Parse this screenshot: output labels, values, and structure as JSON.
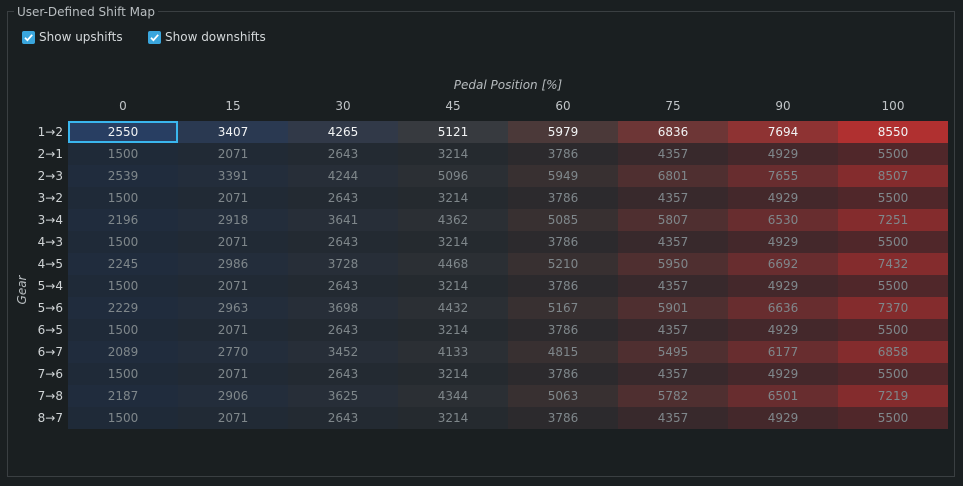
{
  "groupbox": {
    "title": "User-Defined Shift Map"
  },
  "checkboxes": [
    {
      "label": "Show upshifts",
      "checked": true
    },
    {
      "label": "Show downshifts",
      "checked": true
    }
  ],
  "axis": {
    "x_title": "Pedal Position [%]",
    "y_title": "Gear"
  },
  "columns": [
    "0",
    "15",
    "30",
    "45",
    "60",
    "75",
    "90",
    "100"
  ],
  "rows": [
    {
      "label": "1→2",
      "values": [
        "2550",
        "3407",
        "4265",
        "5121",
        "5979",
        "6836",
        "7694",
        "8550"
      ]
    },
    {
      "label": "2→1",
      "values": [
        "1500",
        "2071",
        "2643",
        "3214",
        "3786",
        "4357",
        "4929",
        "5500"
      ]
    },
    {
      "label": "2→3",
      "values": [
        "2539",
        "3391",
        "4244",
        "5096",
        "5949",
        "6801",
        "7655",
        "8507"
      ]
    },
    {
      "label": "3→2",
      "values": [
        "1500",
        "2071",
        "2643",
        "3214",
        "3786",
        "4357",
        "4929",
        "5500"
      ]
    },
    {
      "label": "3→4",
      "values": [
        "2196",
        "2918",
        "3641",
        "4362",
        "5085",
        "5807",
        "6530",
        "7251"
      ]
    },
    {
      "label": "4→3",
      "values": [
        "1500",
        "2071",
        "2643",
        "3214",
        "3786",
        "4357",
        "4929",
        "5500"
      ]
    },
    {
      "label": "4→5",
      "values": [
        "2245",
        "2986",
        "3728",
        "4468",
        "5210",
        "5950",
        "6692",
        "7432"
      ]
    },
    {
      "label": "5→4",
      "values": [
        "1500",
        "2071",
        "2643",
        "3214",
        "3786",
        "4357",
        "4929",
        "5500"
      ]
    },
    {
      "label": "5→6",
      "values": [
        "2229",
        "2963",
        "3698",
        "4432",
        "5167",
        "5901",
        "6636",
        "7370"
      ]
    },
    {
      "label": "6→5",
      "values": [
        "1500",
        "2071",
        "2643",
        "3214",
        "3786",
        "4357",
        "4929",
        "5500"
      ]
    },
    {
      "label": "6→7",
      "values": [
        "2089",
        "2770",
        "3452",
        "4133",
        "4815",
        "5495",
        "6177",
        "6858"
      ]
    },
    {
      "label": "7→6",
      "values": [
        "1500",
        "2071",
        "2643",
        "3214",
        "3786",
        "4357",
        "4929",
        "5500"
      ]
    },
    {
      "label": "7→8",
      "values": [
        "2187",
        "2906",
        "3625",
        "4344",
        "5063",
        "5782",
        "6501",
        "7219"
      ]
    },
    {
      "label": "8→7",
      "values": [
        "1500",
        "2071",
        "2643",
        "3214",
        "3786",
        "4357",
        "4929",
        "5500"
      ]
    }
  ],
  "selection": {
    "row": 0,
    "col": 0
  },
  "colors": {
    "accent": "#3ab6ee",
    "checkbox": "#3aa6dd",
    "low": "#24385a",
    "mid": "#3a3a3a",
    "high": "#b03030"
  }
}
